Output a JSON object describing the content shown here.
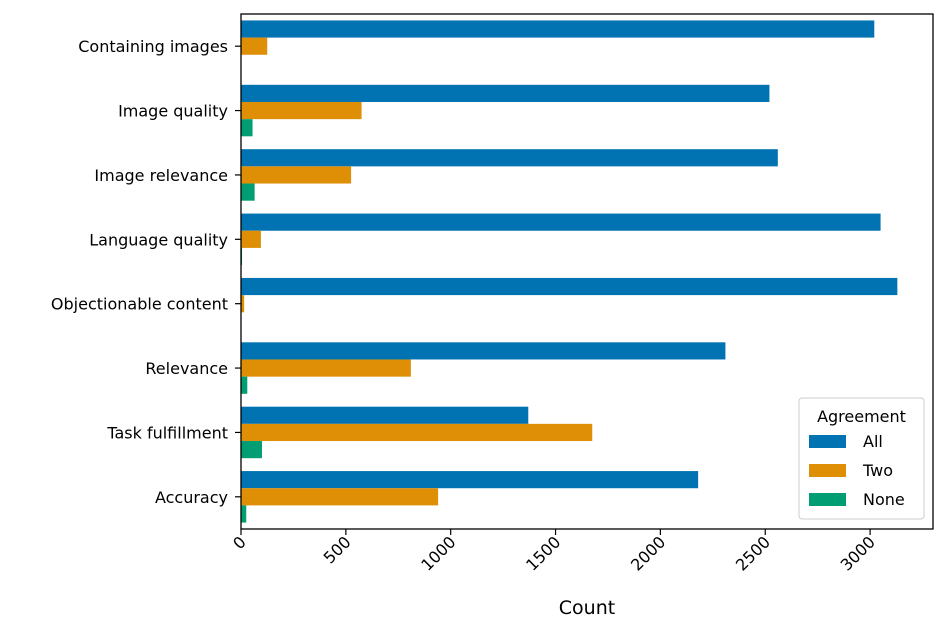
{
  "chart_data": {
    "type": "bar",
    "orientation": "horizontal",
    "categories": [
      "Containing images",
      "Image quality",
      "Image relevance",
      "Language quality",
      "Objectionable content",
      "Relevance",
      "Task fulfillment",
      "Accuracy"
    ],
    "series": [
      {
        "name": "All",
        "color": "#0173b2",
        "values": [
          3020,
          2520,
          2560,
          3050,
          3130,
          2310,
          1370,
          2180
        ]
      },
      {
        "name": "Two",
        "color": "#de8f05",
        "values": [
          125,
          575,
          525,
          95,
          15,
          810,
          1675,
          940
        ]
      },
      {
        "name": "None",
        "color": "#029e73",
        "values": [
          0,
          55,
          65,
          5,
          0,
          30,
          100,
          25
        ]
      }
    ],
    "xlabel": "Count",
    "ylabel": "",
    "xlim": [
      0,
      3300
    ],
    "xticks": [
      "0",
      "500",
      "1000",
      "1500",
      "2000",
      "2500",
      "3000"
    ],
    "legend": {
      "title": "Agreement",
      "position": "lower-right"
    },
    "grid": false
  }
}
